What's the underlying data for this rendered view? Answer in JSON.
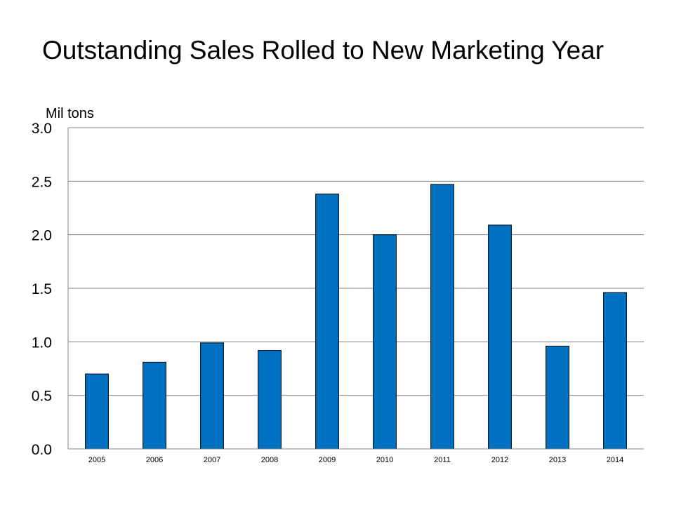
{
  "title": "Outstanding Sales Rolled to New Marketing Year",
  "chart_data": {
    "type": "bar",
    "title": "Outstanding Sales Rolled to New Marketing Year",
    "unit_label": "Mil tons",
    "xlabel": "",
    "ylabel": "",
    "categories": [
      "2005",
      "2006",
      "2007",
      "2008",
      "2009",
      "2010",
      "2011",
      "2012",
      "2013",
      "2014"
    ],
    "values": [
      0.7,
      0.81,
      0.99,
      0.92,
      2.38,
      2.0,
      2.47,
      2.09,
      0.96,
      1.46
    ],
    "ylim": [
      0,
      3
    ],
    "yticks": [
      "0.0",
      "0.5",
      "1.0",
      "1.5",
      "2.0",
      "2.5",
      "3.0"
    ],
    "grid": true,
    "legend": "none",
    "bar_color": "#0070C0",
    "bar_edge_color": "#000000",
    "grid_color": "#808080"
  }
}
